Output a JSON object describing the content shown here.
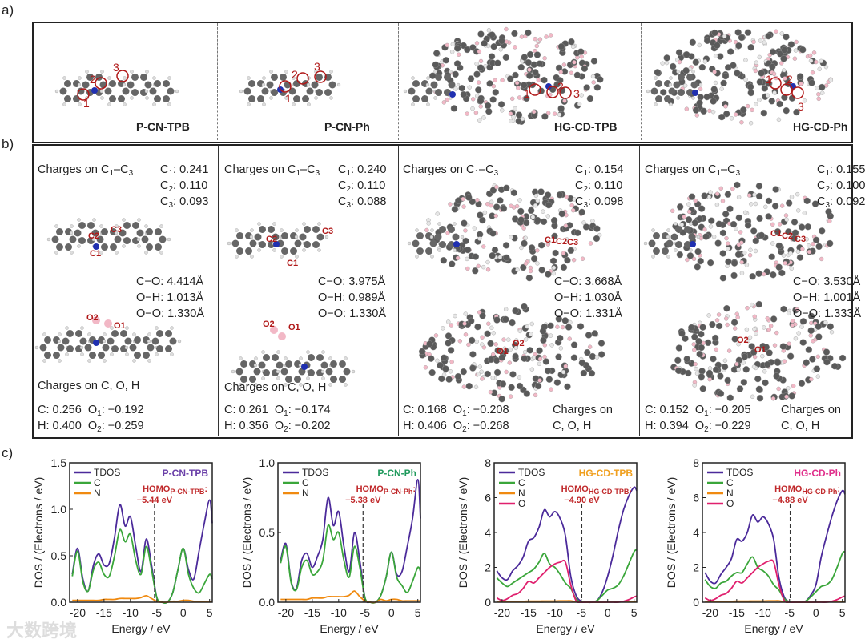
{
  "panel_labels": {
    "a": "a)",
    "b": "b)",
    "c": "c)"
  },
  "panel_a": {
    "molecules": [
      {
        "name": "P-CN-TPB",
        "color": "#6a3fa8",
        "sites": [
          "1",
          "2",
          "3"
        ]
      },
      {
        "name": "P-CN-Ph",
        "color": "#1f9a5c",
        "sites": [
          "1",
          "2",
          "3"
        ]
      },
      {
        "name": "HG-CD-TPB",
        "color": "#f0a020",
        "sites": [
          "1",
          "2",
          "3"
        ]
      },
      {
        "name": "HG-CD-Ph",
        "color": "#e0308c",
        "sites": [
          "1",
          "2",
          "3"
        ]
      }
    ]
  },
  "panel_b": {
    "columns": [
      {
        "header": "Charges on C",
        "header_sub1": "1",
        "header_dash": "–C",
        "header_sub2": "3",
        "charges": [
          {
            "a": "C",
            "s": "1",
            "v": ": 0.241"
          },
          {
            "a": "C",
            "s": "2",
            "v": ": 0.110"
          },
          {
            "a": "C",
            "s": "3",
            "v": ": 0.093"
          }
        ],
        "bonds": [
          "C−O: 4.414Å",
          "O−H: 1.013Å",
          "O−O: 1.330Å"
        ],
        "footer_title": "Charges on C, O, H",
        "row1": {
          "c": "C: 0.256",
          "o": "O",
          "os": "1",
          "ov": ": −0.192"
        },
        "row2": {
          "c": "H: 0.400",
          "o": "O",
          "os": "2",
          "ov": ": −0.259"
        },
        "footer_side": [
          "",
          ""
        ]
      },
      {
        "header": "Charges on C",
        "header_sub1": "1",
        "header_dash": "–C",
        "header_sub2": "3",
        "charges": [
          {
            "a": "C",
            "s": "1",
            "v": ": 0.240"
          },
          {
            "a": "C",
            "s": "2",
            "v": ": 0.110"
          },
          {
            "a": "C",
            "s": "3",
            "v": ": 0.088"
          }
        ],
        "bonds": [
          "C−O: 3.975Å",
          "O−H: 0.989Å",
          "O−O: 1.330Å"
        ],
        "footer_title": "Charges on C, O, H",
        "row1": {
          "c": "C: 0.261",
          "o": "O",
          "os": "1",
          "ov": ": −0.174"
        },
        "row2": {
          "c": "H: 0.356",
          "o": "O",
          "os": "2",
          "ov": ": −0.202"
        },
        "footer_side": [
          "",
          ""
        ]
      },
      {
        "header": "Charges on C",
        "header_sub1": "1",
        "header_dash": "–C",
        "header_sub2": "3",
        "charges": [
          {
            "a": "C",
            "s": "1",
            "v": ": 0.154"
          },
          {
            "a": "C",
            "s": "2",
            "v": ": 0.110"
          },
          {
            "a": "C",
            "s": "3",
            "v": ": 0.098"
          }
        ],
        "bonds": [
          "C−O: 3.668Å",
          "O−H: 1.030Å",
          "O−O: 1.331Å"
        ],
        "footer_title": "",
        "row1": {
          "c": "C: 0.168",
          "o": "O",
          "os": "1",
          "ov": ": −0.208"
        },
        "row2": {
          "c": "H: 0.406",
          "o": "O",
          "os": "2",
          "ov": ": −0.268"
        },
        "footer_side": [
          "Charges on",
          "C, O, H"
        ]
      },
      {
        "header": "Charges on C",
        "header_sub1": "1",
        "header_dash": "–C",
        "header_sub2": "3",
        "charges": [
          {
            "a": "C",
            "s": "1",
            "v": ": 0.155"
          },
          {
            "a": "C",
            "s": "2",
            "v": ": 0.100"
          },
          {
            "a": "C",
            "s": "3",
            "v": ": 0.092"
          }
        ],
        "bonds": [
          "C−O: 3.530Å",
          "O−H: 1.001Å",
          "O−O: 1.333Å"
        ],
        "footer_title": "",
        "row1": {
          "c": "C: 0.152",
          "o": "O",
          "os": "1",
          "ov": ": −0.205"
        },
        "row2": {
          "c": "H: 0.394",
          "o": "O",
          "os": "2",
          "ov": ": −0.229"
        },
        "footer_side": [
          "Charges on",
          "C, O, H"
        ]
      }
    ],
    "atom_labels": {
      "c1": "C1",
      "c2": "C2",
      "c3": "C3",
      "o1": "O1",
      "o2": "O2"
    }
  },
  "watermark": "大数跨境",
  "series_colors": {
    "TDOS": "#4b2a9a",
    "C": "#3aa63a",
    "N": "#f08a10",
    "O": "#e0206e"
  },
  "chart_data": [
    {
      "type": "line",
      "title": "P-CN-TPB",
      "title_color": "#6a3fa8",
      "xlabel": "Energy / eV",
      "ylabel": "DOS / (Electrons / eV)",
      "xlim": [
        -21.5,
        5.5
      ],
      "ylim": [
        0,
        1.5
      ],
      "xticks": [
        -20,
        -15,
        -10,
        -5,
        0,
        5
      ],
      "yticks": [
        "0.0",
        "0.5",
        "1.0",
        "1.5"
      ],
      "ytick_vals": [
        0,
        0.5,
        1.0,
        1.5
      ],
      "homo": {
        "label": "HOMO",
        "sub": "P-CN-TPB",
        "value_label": "−5.44 eV",
        "energy": -5.44
      },
      "x": [
        -21,
        -20,
        -19,
        -18,
        -17,
        -16,
        -15,
        -14,
        -13,
        -12,
        -11,
        -10,
        -9,
        -8,
        -7,
        -6,
        -5,
        -4,
        -3,
        -2,
        -1,
        0,
        1,
        2,
        3,
        4,
        5,
        5.5
      ],
      "series": [
        {
          "name": "TDOS",
          "values": [
            0.3,
            0.58,
            0.25,
            0.12,
            0.4,
            0.52,
            0.4,
            0.42,
            0.7,
            1.05,
            0.82,
            0.92,
            0.6,
            0.33,
            0.68,
            0.4,
            0.05,
            0,
            0,
            0.1,
            0.35,
            0.58,
            0.35,
            0.25,
            0.55,
            0.85,
            1.1,
            0.85
          ]
        },
        {
          "name": "C",
          "values": [
            0.28,
            0.55,
            0.22,
            0.12,
            0.35,
            0.43,
            0.3,
            0.28,
            0.5,
            0.78,
            0.65,
            0.73,
            0.45,
            0.3,
            0.6,
            0.35,
            0.05,
            0,
            0,
            0.1,
            0.35,
            0.58,
            0.3,
            0.15,
            0.1,
            0.2,
            0.3,
            0.25
          ]
        },
        {
          "name": "N",
          "values": [
            0.02,
            0.02,
            0.02,
            0.02,
            0.02,
            0.02,
            0.03,
            0.03,
            0.03,
            0.04,
            0.04,
            0.04,
            0.04,
            0.05,
            0.07,
            0.04,
            0.01,
            0,
            0,
            0.01,
            0.01,
            0.02,
            0.02,
            0.01,
            0.01,
            0.01,
            0.01,
            0.01
          ]
        }
      ]
    },
    {
      "type": "line",
      "title": "P-CN-Ph",
      "title_color": "#1f9a5c",
      "xlabel": "Energy / eV",
      "ylabel": "DOS / (Electrons / eV)",
      "xlim": [
        -21.5,
        5.5
      ],
      "ylim": [
        0,
        1.0
      ],
      "xticks": [
        -20,
        -15,
        -10,
        -5,
        0,
        5
      ],
      "yticks": [
        "0.0",
        "0.5",
        "1.0"
      ],
      "ytick_vals": [
        0,
        0.5,
        1.0
      ],
      "homo": {
        "label": "HOMO",
        "sub": "P-CN-Ph",
        "value_label": "−5.38 eV",
        "energy": -5.38
      },
      "x": [
        -21,
        -20,
        -19,
        -18,
        -17,
        -16,
        -15,
        -14,
        -13,
        -12,
        -11,
        -10,
        -9,
        -8,
        -7,
        -6,
        -5,
        -4,
        -3,
        -2,
        -1,
        0,
        1,
        2,
        3,
        4,
        5,
        5.5
      ],
      "series": [
        {
          "name": "TDOS",
          "values": [
            0.3,
            0.42,
            0.15,
            0.1,
            0.3,
            0.35,
            0.25,
            0.33,
            0.45,
            0.75,
            0.55,
            0.65,
            0.4,
            0.22,
            0.5,
            0.3,
            0.03,
            0,
            0,
            0.05,
            0.18,
            0.36,
            0.2,
            0.22,
            0.4,
            0.6,
            0.88,
            0.6
          ]
        },
        {
          "name": "C",
          "values": [
            0.28,
            0.4,
            0.14,
            0.09,
            0.25,
            0.3,
            0.2,
            0.22,
            0.3,
            0.55,
            0.45,
            0.5,
            0.3,
            0.18,
            0.4,
            0.25,
            0.03,
            0,
            0,
            0.05,
            0.18,
            0.36,
            0.18,
            0.12,
            0.07,
            0.15,
            0.25,
            0.22
          ]
        },
        {
          "name": "N",
          "values": [
            0.02,
            0.02,
            0.02,
            0.02,
            0.02,
            0.02,
            0.03,
            0.03,
            0.03,
            0.04,
            0.04,
            0.04,
            0.04,
            0.05,
            0.08,
            0.04,
            0.01,
            0,
            0,
            0.02,
            0.01,
            0.02,
            0.02,
            0.01,
            0.01,
            0.01,
            0.01,
            0.01
          ]
        }
      ]
    },
    {
      "type": "line",
      "title": "HG-CD-TPB",
      "title_color": "#f0a020",
      "xlabel": "Energy / eV",
      "ylabel": "DOS / (Electrons / eV)",
      "xlim": [
        -21.5,
        5.5
      ],
      "ylim": [
        0,
        8
      ],
      "xticks": [
        -20,
        -15,
        -10,
        -5,
        0,
        5
      ],
      "yticks": [
        "0",
        "2",
        "4",
        "6",
        "8"
      ],
      "ytick_vals": [
        0,
        2,
        4,
        6,
        8
      ],
      "homo": {
        "label": "HOMO",
        "sub": "HG-CD-TPB",
        "value_label": "−4.90 eV",
        "energy": -4.9
      },
      "x": [
        -21,
        -20,
        -19,
        -18,
        -17,
        -16,
        -15,
        -14,
        -13,
        -12,
        -11,
        -10,
        -9,
        -8,
        -7,
        -6,
        -5,
        -4,
        -3,
        -2,
        -1,
        0,
        1,
        2,
        3,
        4,
        5,
        5.5
      ],
      "series": [
        {
          "name": "TDOS",
          "values": [
            1.8,
            1.4,
            1.3,
            1.8,
            2.1,
            2.6,
            3.5,
            3.7,
            4.3,
            5.3,
            4.9,
            5.2,
            4.8,
            3.8,
            1.5,
            0.4,
            0.05,
            0,
            0,
            0.1,
            0.6,
            1.5,
            2.7,
            4.1,
            5.3,
            6.1,
            6.6,
            6.4
          ]
        },
        {
          "name": "C",
          "values": [
            1.4,
            1.1,
            0.9,
            1.1,
            1.3,
            1.5,
            1.7,
            1.9,
            2.3,
            2.8,
            2.2,
            2.0,
            1.6,
            1.1,
            0.8,
            0.2,
            0.02,
            0,
            0,
            0.1,
            0.4,
            0.7,
            0.8,
            1.0,
            1.5,
            2.2,
            2.9,
            3.0
          ]
        },
        {
          "name": "N",
          "values": [
            0.05,
            0.05,
            0.05,
            0.05,
            0.05,
            0.05,
            0.06,
            0.06,
            0.06,
            0.07,
            0.07,
            0.07,
            0.08,
            0.08,
            0.08,
            0.03,
            0,
            0,
            0,
            0,
            0,
            0.01,
            0.02,
            0.02,
            0.02,
            0.03,
            0.03,
            0.03
          ]
        },
        {
          "name": "O",
          "values": [
            0.25,
            0.1,
            0.2,
            0.4,
            0.5,
            0.8,
            1.2,
            1.1,
            1.4,
            1.7,
            2.0,
            2.2,
            2.3,
            2.3,
            1.0,
            0.1,
            0,
            0,
            0,
            0,
            0,
            0,
            0,
            0,
            0.05,
            0.15,
            0.3,
            0.35
          ]
        }
      ]
    },
    {
      "type": "line",
      "title": "HG-CD-Ph",
      "title_color": "#e0308c",
      "xlabel": "Energy / eV",
      "ylabel": "DOS / (Electrons / eV)",
      "xlim": [
        -21.5,
        5.5
      ],
      "ylim": [
        0,
        8
      ],
      "xticks": [
        -20,
        -15,
        -10,
        -5,
        0,
        5
      ],
      "yticks": [
        "0",
        "2",
        "4",
        "6",
        "8"
      ],
      "ytick_vals": [
        0,
        2,
        4,
        6,
        8
      ],
      "homo": {
        "label": "HOMO",
        "sub": "HG-CD-Ph",
        "value_label": "−4.88 eV",
        "energy": -4.88
      },
      "x": [
        -21,
        -20,
        -19,
        -18,
        -17,
        -16,
        -15,
        -14,
        -13,
        -12,
        -11,
        -10,
        -9,
        -8,
        -7,
        -6,
        -5,
        -4,
        -3,
        -2,
        -1,
        0,
        1,
        2,
        3,
        4,
        5,
        5.5
      ],
      "series": [
        {
          "name": "TDOS",
          "values": [
            1.7,
            1.2,
            1.1,
            1.6,
            2.0,
            2.5,
            3.6,
            3.5,
            4.0,
            5.0,
            4.6,
            4.9,
            4.5,
            3.6,
            1.4,
            0.3,
            0.03,
            0,
            0,
            0.05,
            0.4,
            1.0,
            2.6,
            3.8,
            4.9,
            5.8,
            6.4,
            6.2
          ]
        },
        {
          "name": "C",
          "values": [
            1.3,
            0.9,
            0.8,
            1.1,
            1.2,
            1.5,
            1.7,
            1.7,
            2.2,
            2.6,
            2.0,
            1.8,
            1.5,
            1.0,
            0.7,
            0.2,
            0.02,
            0,
            0,
            0.05,
            0.3,
            0.6,
            0.9,
            1.0,
            1.3,
            2.0,
            2.8,
            2.9
          ]
        },
        {
          "name": "N",
          "values": [
            0.05,
            0.05,
            0.05,
            0.05,
            0.05,
            0.05,
            0.06,
            0.06,
            0.06,
            0.07,
            0.07,
            0.07,
            0.08,
            0.08,
            0.08,
            0.03,
            0,
            0,
            0,
            0,
            0,
            0.01,
            0.02,
            0.02,
            0.02,
            0.03,
            0.03,
            0.03
          ]
        },
        {
          "name": "O",
          "values": [
            0.25,
            0.1,
            0.2,
            0.4,
            0.5,
            0.8,
            1.2,
            1.1,
            1.4,
            1.7,
            2.0,
            2.2,
            2.35,
            2.3,
            1.0,
            0.1,
            0,
            0,
            0,
            0,
            0,
            0,
            0,
            0,
            0.05,
            0.15,
            0.3,
            0.35
          ]
        }
      ]
    }
  ]
}
